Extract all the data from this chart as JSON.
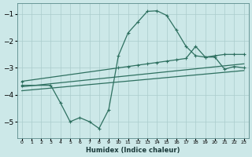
{
  "xlabel": "Humidex (Indice chaleur)",
  "bg_color": "#cce8e8",
  "grid_color": "#aacccc",
  "line_color": "#2e7060",
  "xlim": [
    -0.5,
    23.5
  ],
  "ylim": [
    -5.6,
    -0.6
  ],
  "yticks": [
    -5,
    -4,
    -3,
    -2,
    -1
  ],
  "xticks": [
    0,
    1,
    2,
    3,
    4,
    5,
    6,
    7,
    8,
    9,
    10,
    11,
    12,
    13,
    14,
    15,
    16,
    17,
    18,
    19,
    20,
    21,
    22,
    23
  ],
  "curve1_x": [
    0,
    3,
    4,
    5,
    6,
    7,
    8,
    9,
    10,
    11,
    12,
    13,
    14,
    15,
    16,
    17,
    18,
    19,
    20,
    21,
    22,
    23
  ],
  "curve1_y": [
    -3.65,
    -3.65,
    -4.3,
    -5.0,
    -4.85,
    -5.0,
    -5.25,
    -4.55,
    -2.55,
    -1.7,
    -1.3,
    -0.9,
    -0.88,
    -1.05,
    -1.6,
    -2.2,
    -2.55,
    -2.6,
    -2.6,
    -3.05,
    -2.95,
    -3.0
  ],
  "line2_x": [
    0,
    10,
    11,
    12,
    13,
    14,
    15,
    16,
    17,
    18,
    19,
    20,
    21,
    22,
    23
  ],
  "line2_y": [
    -3.5,
    -3.0,
    -2.95,
    -2.9,
    -2.85,
    -2.8,
    -2.75,
    -2.7,
    -2.65,
    -2.2,
    -2.6,
    -2.55,
    -2.5,
    -2.5,
    -2.5
  ],
  "line3_x": [
    0,
    23
  ],
  "line3_y": [
    -3.7,
    -2.85
  ],
  "line4_x": [
    0,
    23
  ],
  "line4_y": [
    -3.85,
    -3.1
  ]
}
